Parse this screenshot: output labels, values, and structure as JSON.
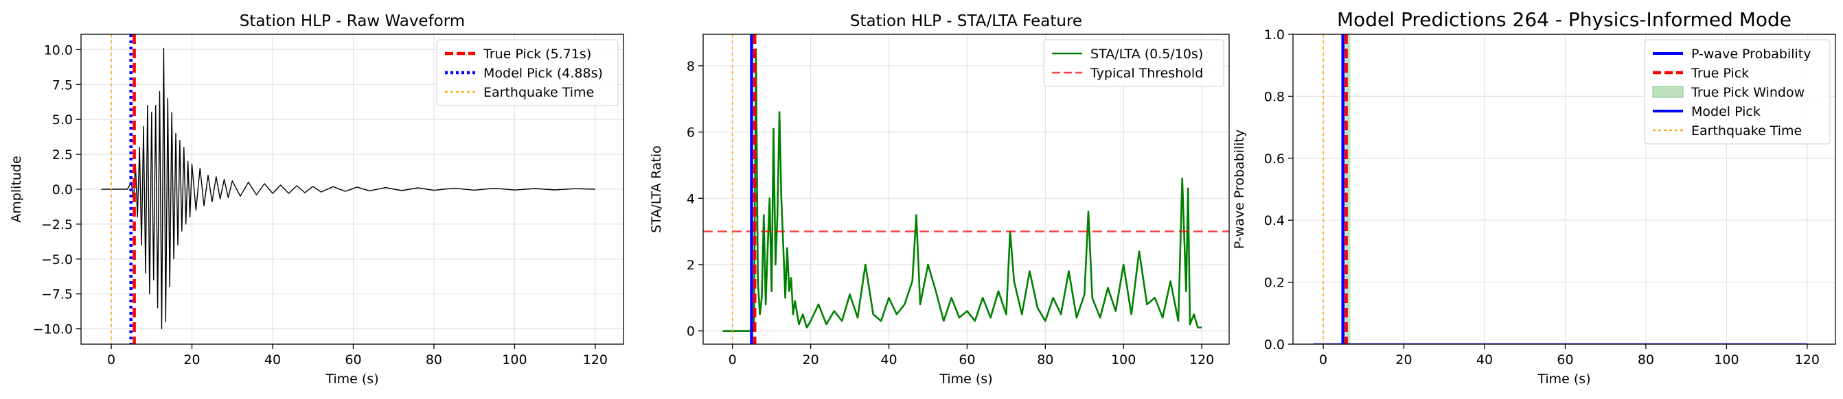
{
  "chart_data": [
    {
      "type": "line",
      "title": "Station HLP - Raw Waveform",
      "xlabel": "Time (s)",
      "ylabel": "Amplitude",
      "xlim": [
        -7.5,
        127
      ],
      "ylim": [
        -11.1,
        11.1
      ],
      "xticks": [
        0,
        20,
        40,
        60,
        80,
        100,
        120
      ],
      "yticks": [
        -10.0,
        -7.5,
        -5.0,
        -2.5,
        0.0,
        2.5,
        5.0,
        7.5,
        10.0
      ],
      "ytick_labels": [
        "−10.0",
        "−7.5",
        "−5.0",
        "−2.5",
        "0.0",
        "2.5",
        "5.0",
        "7.5",
        "10.0"
      ],
      "grid": true,
      "legend_position": "top-right",
      "series": [
        {
          "name": "",
          "color": "#000000",
          "x": [
            -2.5,
            4.0,
            5.0,
            5.5,
            6.0,
            6.5,
            7.0,
            7.5,
            8.0,
            8.5,
            9.0,
            9.5,
            10.0,
            10.5,
            11.0,
            11.5,
            12.0,
            12.5,
            13.0,
            13.5,
            14.0,
            14.5,
            15.0,
            15.5,
            16.0,
            16.5,
            17.0,
            17.5,
            18.0,
            18.5,
            19.0,
            19.5,
            20.0,
            21.0,
            22.0,
            23.0,
            24.0,
            25.0,
            26.0,
            27.0,
            28.0,
            29.0,
            30.0,
            32.0,
            34.0,
            36.0,
            38.0,
            40.0,
            42.0,
            44.0,
            46.0,
            48.0,
            50.0,
            52.0,
            55.0,
            58.0,
            61.0,
            64.0,
            68.0,
            72.0,
            76.0,
            80.0,
            85.0,
            90.0,
            95.0,
            100.0,
            105.0,
            110.0,
            115.0,
            120.0
          ],
          "values": [
            0.0,
            0.0,
            0.5,
            -0.8,
            1.8,
            -2.0,
            3.0,
            -4.0,
            4.5,
            -6.0,
            6.0,
            -7.5,
            5.5,
            -6.5,
            6.0,
            -8.5,
            7.0,
            -10.0,
            10.1,
            -9.5,
            6.5,
            -7.0,
            5.5,
            -5.0,
            4.0,
            -4.0,
            3.5,
            -3.0,
            3.0,
            -2.5,
            2.0,
            -2.0,
            1.8,
            -1.5,
            1.5,
            -1.2,
            1.0,
            -0.9,
            0.9,
            -0.7,
            0.7,
            -0.6,
            0.6,
            -0.5,
            0.5,
            -0.4,
            0.4,
            -0.3,
            0.3,
            -0.3,
            0.25,
            -0.25,
            0.2,
            -0.2,
            0.18,
            -0.15,
            0.15,
            -0.12,
            0.12,
            -0.1,
            0.1,
            -0.08,
            0.08,
            -0.07,
            0.07,
            -0.06,
            0.05,
            -0.05,
            0.04,
            0.0
          ]
        }
      ],
      "vlines": [
        {
          "name": "True Pick (5.71s)",
          "x": 5.71,
          "color": "#ff0000",
          "style": "dashed"
        },
        {
          "name": "Model Pick (4.88s)",
          "x": 4.88,
          "color": "#0000ff",
          "style": "dotted"
        },
        {
          "name": "Earthquake Time",
          "x": 0.0,
          "color": "#ffa500",
          "style": "dotted"
        }
      ],
      "legend": [
        "True Pick (5.71s)",
        "Model Pick (4.88s)",
        "Earthquake Time"
      ]
    },
    {
      "type": "line",
      "title": "Station HLP - STA/LTA Feature",
      "xlabel": "Time (s)",
      "ylabel": "STA/LTA Ratio",
      "xlim": [
        -7.5,
        127
      ],
      "ylim": [
        -0.4,
        8.95
      ],
      "xticks": [
        0,
        20,
        40,
        60,
        80,
        100,
        120
      ],
      "yticks": [
        0,
        2,
        4,
        6,
        8
      ],
      "ytick_labels": [
        "0",
        "2",
        "4",
        "6",
        "8"
      ],
      "grid": true,
      "legend_position": "top-right",
      "series": [
        {
          "name": "STA/LTA (0.5/10s)",
          "color": "#008000",
          "x": [
            -2.5,
            5.0,
            5.5,
            6.0,
            6.5,
            7.0,
            7.5,
            8.0,
            8.5,
            9.0,
            9.5,
            10.0,
            10.5,
            11.0,
            11.5,
            12.0,
            12.5,
            13.0,
            13.5,
            14.0,
            14.5,
            15.0,
            15.5,
            16.0,
            17.0,
            18.0,
            19.0,
            20.0,
            22.0,
            24.0,
            26.0,
            28.0,
            30.0,
            32.0,
            34.0,
            36.0,
            38.0,
            40.0,
            42.0,
            44.0,
            46.0,
            47.0,
            48.0,
            50.0,
            52.0,
            54.0,
            56.0,
            58.0,
            60.0,
            62.0,
            64.0,
            66.0,
            68.0,
            70.0,
            71.0,
            72.0,
            74.0,
            76.0,
            78.0,
            80.0,
            82.0,
            84.0,
            86.0,
            88.0,
            90.0,
            91.0,
            92.0,
            94.0,
            96.0,
            98.0,
            100.0,
            102.0,
            104.0,
            106.0,
            108.0,
            110.0,
            112.0,
            114.0,
            115.0,
            116.0,
            116.5,
            117.0,
            118.0,
            119.0,
            120.0
          ],
          "values": [
            0.0,
            0.0,
            0.0,
            8.5,
            1.5,
            0.5,
            1.0,
            3.5,
            0.8,
            2.5,
            4.0,
            1.2,
            6.1,
            2.0,
            3.5,
            6.6,
            4.0,
            2.5,
            1.0,
            2.5,
            1.2,
            1.6,
            0.5,
            0.9,
            0.2,
            0.5,
            0.1,
            0.3,
            0.8,
            0.2,
            0.6,
            0.3,
            1.1,
            0.4,
            2.0,
            0.5,
            0.3,
            1.0,
            0.5,
            0.8,
            1.5,
            3.5,
            0.8,
            2.0,
            1.2,
            0.3,
            1.0,
            0.4,
            0.6,
            0.3,
            1.0,
            0.4,
            1.2,
            0.5,
            3.0,
            1.5,
            0.5,
            1.8,
            0.7,
            0.3,
            1.0,
            0.5,
            1.8,
            0.4,
            1.1,
            3.6,
            1.0,
            0.4,
            1.3,
            0.6,
            2.0,
            0.5,
            2.4,
            0.8,
            1.0,
            0.4,
            1.5,
            0.3,
            4.6,
            1.2,
            4.3,
            0.2,
            0.5,
            0.1,
            0.1
          ]
        }
      ],
      "hlines": [
        {
          "name": "Typical Threshold",
          "y": 3.0,
          "color": "#ff0000",
          "style": "dashed"
        }
      ],
      "vlines": [
        {
          "name": "",
          "x": 5.71,
          "color": "#ff0000",
          "style": "dashed"
        },
        {
          "name": "",
          "x": 4.88,
          "color": "#0000ff",
          "style": "solid"
        },
        {
          "name": "",
          "x": 0.0,
          "color": "#ffa500",
          "style": "dotted"
        }
      ],
      "legend": [
        "STA/LTA (0.5/10s)",
        "Typical Threshold"
      ]
    },
    {
      "type": "line",
      "title": "Model Predictions 264 - Physics-Informed Mode",
      "xlabel": "Time (s)",
      "ylabel": "P-wave Probability",
      "xlim": [
        -7.5,
        127
      ],
      "ylim": [
        0.0,
        1.0
      ],
      "xticks": [
        0,
        20,
        40,
        60,
        80,
        100,
        120
      ],
      "yticks": [
        0.0,
        0.2,
        0.4,
        0.6,
        0.8,
        1.0
      ],
      "ytick_labels": [
        "0.0",
        "0.2",
        "0.4",
        "0.6",
        "0.8",
        "1.0"
      ],
      "grid": true,
      "legend_position": "top-right",
      "series": [
        {
          "name": "P-wave Probability",
          "color": "#0000ff",
          "x": [
            -2.5,
            120.0
          ],
          "values": [
            0.0,
            0.0
          ]
        }
      ],
      "spans": [
        {
          "name": "True Pick Window",
          "x0": 4.71,
          "x1": 6.71,
          "color": "#2ca02c"
        }
      ],
      "vlines": [
        {
          "name": "True Pick",
          "x": 5.71,
          "color": "#ff0000",
          "style": "dashed"
        },
        {
          "name": "Model Pick",
          "x": 4.88,
          "color": "#0000ff",
          "style": "solid"
        },
        {
          "name": "Earthquake Time",
          "x": 0.0,
          "color": "#ffa500",
          "style": "dotted"
        }
      ],
      "legend": [
        "P-wave Probability",
        "True Pick",
        "True Pick Window",
        "Model Pick",
        "Earthquake Time"
      ]
    }
  ]
}
